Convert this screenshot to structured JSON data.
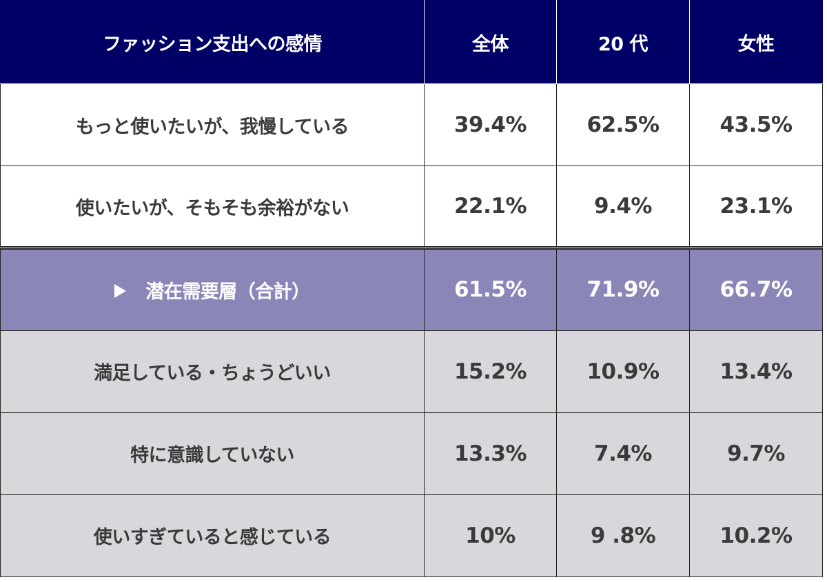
{
  "chart_data": {
    "type": "table",
    "columns": [
      "ファッション支出への感情",
      "全体",
      "20 代",
      "女性"
    ],
    "rows": [
      {
        "label": "もっと使いたいが、我慢している",
        "values": [
          "39.4%",
          "62.5%",
          "43.5%"
        ],
        "style": "white"
      },
      {
        "label": "使いたいが、そもそも余裕がない",
        "values": [
          "22.1%",
          "9.4%",
          "23.1%"
        ],
        "style": "white"
      },
      {
        "label": "潜在需要層（合計）",
        "values": [
          "61.5%",
          "71.9%",
          "66.7%"
        ],
        "style": "subtotal",
        "icon": "triangle-right-icon"
      },
      {
        "label": "満足している・ちょうどいい",
        "values": [
          "15.2%",
          "10.9%",
          "13.4%"
        ],
        "style": "gray"
      },
      {
        "label": "特に意識していない",
        "values": [
          "13.3%",
          "7.4%",
          "9.7%"
        ],
        "style": "gray"
      },
      {
        "label": "使いすぎていると感じている",
        "values": [
          "10%",
          "9 .8%",
          "10.2%"
        ],
        "style": "gray"
      }
    ]
  },
  "colors": {
    "header_bg": "#000066",
    "header_text": "#ffffff",
    "subtotal_bg": "#8b86b8",
    "gray_bg": "#d9d7db",
    "body_text": "#3a3a3a"
  }
}
